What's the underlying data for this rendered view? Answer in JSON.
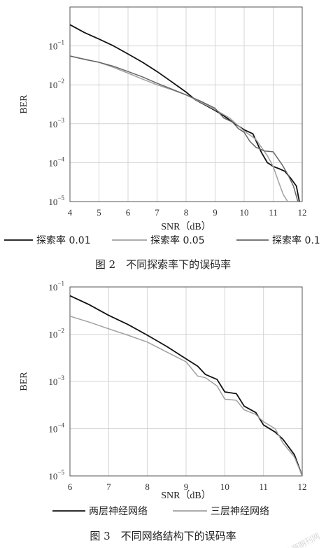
{
  "chart_data": [
    {
      "type": "line",
      "xlabel": "SNR（dB）",
      "ylabel": "BER",
      "yscale": "log",
      "xlim": [
        4,
        12
      ],
      "ylim": [
        1e-05,
        1
      ],
      "xticks": [
        "4",
        "5",
        "6",
        "7",
        "8",
        "9",
        "10",
        "11",
        "12"
      ],
      "yticks": [
        {
          "base": "10",
          "exp": "−1"
        },
        {
          "base": "10",
          "exp": "−2"
        },
        {
          "base": "10",
          "exp": "−3"
        },
        {
          "base": "10",
          "exp": "−4"
        },
        {
          "base": "10",
          "exp": "−5"
        }
      ],
      "grid": true,
      "legend_position": "bottom",
      "caption": "图 2　不同探索率下的误码率",
      "series": [
        {
          "name": "探索率 0.01",
          "color": "#111111",
          "x": [
            4,
            4.5,
            5,
            5.5,
            6,
            6.5,
            7,
            7.5,
            8,
            8.3,
            8.6,
            9,
            9.3,
            9.6,
            10,
            10.3,
            10.6,
            10.8,
            11,
            11.2,
            11.4,
            11.6,
            11.8,
            11.9
          ],
          "y": [
            0.35,
            0.22,
            0.15,
            0.1,
            0.062,
            0.038,
            0.022,
            0.012,
            0.0065,
            0.0042,
            0.0032,
            0.0022,
            0.0016,
            0.0011,
            0.0007,
            0.00055,
            0.00018,
            0.0001,
            8e-05,
            7e-05,
            6e-05,
            4e-05,
            2.5e-05,
            1e-05
          ]
        },
        {
          "name": "探索率 0.05",
          "color": "#a0a0a0",
          "x": [
            4,
            5,
            5.5,
            6,
            6.5,
            7,
            7.5,
            8,
            8.5,
            9,
            9.5,
            10,
            10.4,
            10.8,
            11,
            11.2,
            11.35,
            11.5
          ],
          "y": [
            0.055,
            0.038,
            0.028,
            0.02,
            0.014,
            0.01,
            0.0075,
            0.0055,
            0.0036,
            0.0023,
            0.0014,
            0.00065,
            0.0004,
            0.00015,
            8e-05,
            3e-05,
            1.5e-05,
            1e-05
          ]
        },
        {
          "name": "探索率 0.1",
          "color": "#666666",
          "x": [
            4,
            4.5,
            5,
            5.5,
            6,
            6.5,
            7,
            7.5,
            8,
            8.5,
            9,
            9.3,
            9.6,
            9.8,
            10,
            10.2,
            10.4,
            10.7,
            11,
            11.3,
            11.5,
            11.7,
            11.85
          ],
          "y": [
            0.055,
            0.045,
            0.038,
            0.03,
            0.022,
            0.016,
            0.011,
            0.0078,
            0.0055,
            0.0038,
            0.0025,
            0.0014,
            0.0011,
            0.00075,
            0.0006,
            0.00035,
            0.00025,
            0.0002,
            0.00019,
            9e-05,
            5e-05,
            2.5e-05,
            1e-05
          ]
        }
      ]
    },
    {
      "type": "line",
      "xlabel": "SNR（dB）",
      "ylabel": "BER",
      "yscale": "log",
      "xlim": [
        6,
        12
      ],
      "ylim": [
        1e-05,
        0.1
      ],
      "xticks": [
        "6",
        "7",
        "8",
        "9",
        "10",
        "11",
        "12"
      ],
      "yticks": [
        {
          "base": "10",
          "exp": "−1"
        },
        {
          "base": "10",
          "exp": "−2"
        },
        {
          "base": "10",
          "exp": "−3"
        },
        {
          "base": "10",
          "exp": "−4"
        },
        {
          "base": "10",
          "exp": "−5"
        }
      ],
      "grid": true,
      "legend_position": "bottom",
      "caption": "图 3　不同网络结构下的误码率",
      "series": [
        {
          "name": "两层神经网络",
          "color": "#111111",
          "x": [
            6,
            6.5,
            7,
            7.5,
            8,
            8.5,
            9,
            9.3,
            9.5,
            9.8,
            10,
            10.3,
            10.5,
            10.8,
            11,
            11.3,
            11.5,
            11.8,
            12
          ],
          "y": [
            0.065,
            0.042,
            0.025,
            0.016,
            0.0095,
            0.0055,
            0.003,
            0.0021,
            0.0014,
            0.0011,
            0.0006,
            0.00055,
            0.0003,
            0.00022,
            0.00012,
            8.5e-05,
            6e-05,
            2.8e-05,
            1e-05
          ]
        },
        {
          "name": "三层神经网络",
          "color": "#a0a0a0",
          "x": [
            6,
            6.5,
            7,
            7.5,
            8,
            8.5,
            9,
            9.3,
            9.5,
            9.8,
            10,
            10.3,
            10.5,
            10.8,
            11,
            11.3,
            11.5,
            11.8,
            12
          ],
          "y": [
            0.024,
            0.018,
            0.013,
            0.0095,
            0.0068,
            0.0042,
            0.0026,
            0.0013,
            0.0012,
            0.0008,
            0.00042,
            0.0004,
            0.00025,
            0.0002,
            0.00014,
            0.0001,
            5e-05,
            2.5e-05,
            1e-05
          ]
        }
      ]
    }
  ],
  "watermark": "龙源期刊网"
}
